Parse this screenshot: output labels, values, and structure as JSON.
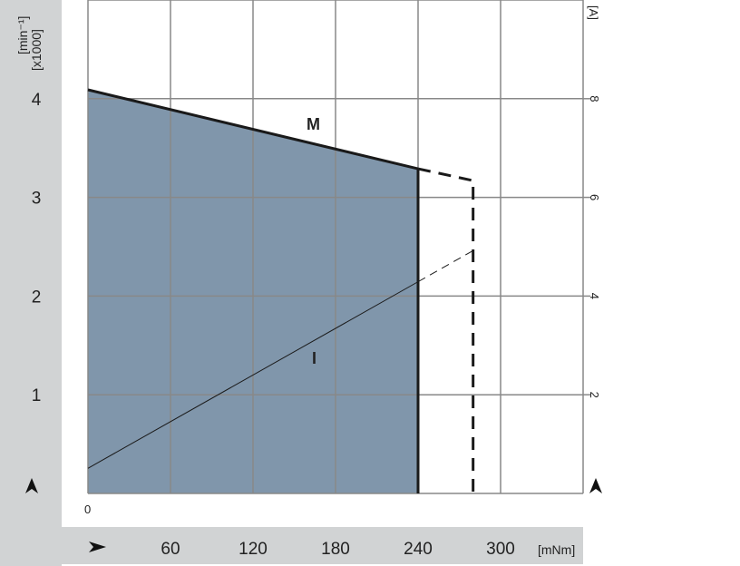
{
  "chart_data": {
    "type": "area",
    "xlabel": "[mNm]",
    "ylabel_left": [
      "[min⁻¹]",
      "[x1000]"
    ],
    "ylabel_right": "[A]",
    "x_ticks": [
      "0",
      "60",
      "120",
      "180",
      "240",
      "300"
    ],
    "x_tick_values": [
      0,
      60,
      120,
      180,
      240,
      300
    ],
    "y_left_ticks": [
      "1",
      "2",
      "3",
      "4"
    ],
    "y_left_tick_values": [
      1,
      2,
      3,
      4
    ],
    "y_right_ticks": [
      "2",
      "4",
      "6",
      "8"
    ],
    "y_right_tick_values": [
      2,
      4,
      6,
      8
    ],
    "xlim": [
      0,
      360
    ],
    "ylim_left": [
      0,
      5
    ],
    "ylim_right": [
      0,
      10
    ],
    "grid": true,
    "series": [
      {
        "name": "M",
        "axis": "left",
        "x": [
          0,
          240
        ],
        "y": [
          4.09,
          3.29
        ],
        "style": "solid",
        "filled": true
      },
      {
        "name": "M",
        "axis": "left",
        "x": [
          240,
          280,
          280
        ],
        "y": [
          3.29,
          3.17,
          0
        ],
        "style": "dashed"
      },
      {
        "name": "I",
        "axis": "right",
        "x": [
          0,
          240
        ],
        "y": [
          0.51,
          4.29
        ],
        "style": "solid"
      },
      {
        "name": "I",
        "axis": "right",
        "x": [
          240,
          280
        ],
        "y": [
          4.29,
          4.92
        ],
        "style": "dashed"
      }
    ],
    "colors": {
      "fill": "#8096ab",
      "band": "#d1d3d4",
      "grid": "#888888",
      "line": "#1a1a1a"
    }
  }
}
